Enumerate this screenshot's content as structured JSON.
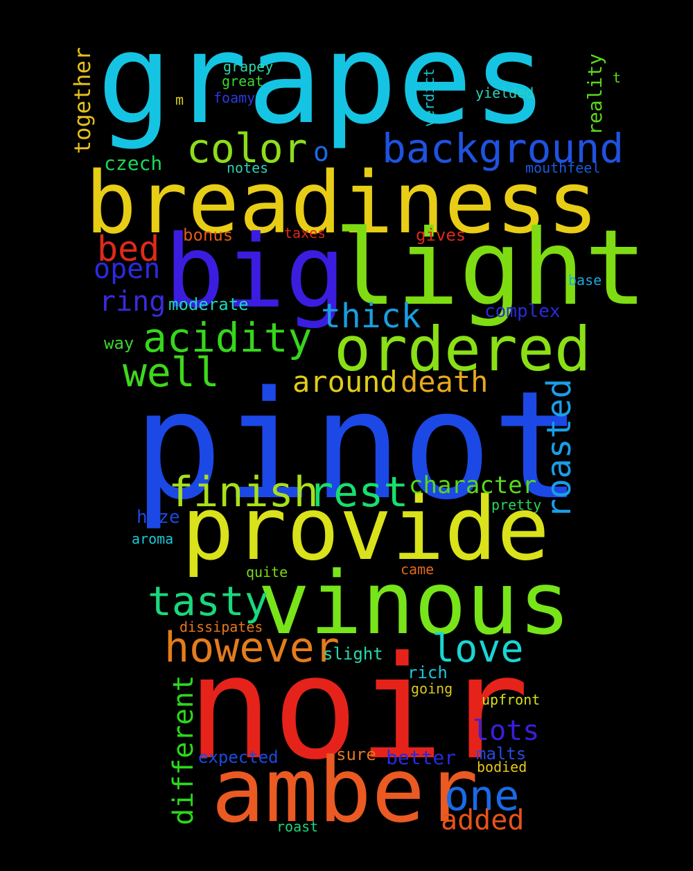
{
  "words": [
    {
      "id": "pinot",
      "text": "pinot",
      "color": "#1c48e6"
    },
    {
      "id": "noir",
      "text": "noir",
      "color": "#e5231b"
    },
    {
      "id": "grapes",
      "text": "grapes",
      "color": "#15c4e2"
    },
    {
      "id": "breadiness",
      "text": "breadiness",
      "color": "#e8cd16"
    },
    {
      "id": "big",
      "text": "big",
      "color": "#3b1de0"
    },
    {
      "id": "light",
      "text": "light",
      "color": "#7fdc12"
    },
    {
      "id": "provide",
      "text": "provide",
      "color": "#d9e21a"
    },
    {
      "id": "vinous",
      "text": "vinous",
      "color": "#78e41a"
    },
    {
      "id": "amber",
      "text": "amber",
      "color": "#ea5a22"
    },
    {
      "id": "ordered",
      "text": "ordered",
      "color": "#8ae015"
    },
    {
      "id": "background",
      "text": "background",
      "color": "#1f52e0"
    },
    {
      "id": "color",
      "text": "color",
      "color": "#8edd1a"
    },
    {
      "id": "acidity",
      "text": "acidity",
      "color": "#36d61c"
    },
    {
      "id": "finish",
      "text": "finish",
      "color": "#a8e01a"
    },
    {
      "id": "rest",
      "text": "rest",
      "color": "#18de6e"
    },
    {
      "id": "tasty",
      "text": "tasty",
      "color": "#1ad87c"
    },
    {
      "id": "however",
      "text": "however",
      "color": "#e47c1c"
    },
    {
      "id": "love",
      "text": "love",
      "color": "#1ad6d2"
    },
    {
      "id": "one",
      "text": "one",
      "color": "#1a6ae8"
    },
    {
      "id": "well",
      "text": "well",
      "color": "#3ed81c"
    },
    {
      "id": "around",
      "text": "around",
      "color": "#e0cc1a"
    },
    {
      "id": "death",
      "text": "death",
      "color": "#e6a81c"
    },
    {
      "id": "thick",
      "text": "thick",
      "color": "#1a9ee2"
    },
    {
      "id": "roasted",
      "text": "roasted",
      "color": "#1a9ee8"
    },
    {
      "id": "bed",
      "text": "bed",
      "color": "#e02a1a"
    },
    {
      "id": "open",
      "text": "open",
      "color": "#2a2ae0"
    },
    {
      "id": "ring",
      "text": "ring",
      "color": "#3a2ae0"
    },
    {
      "id": "lots",
      "text": "lots",
      "color": "#3a1ee0"
    },
    {
      "id": "added",
      "text": "added",
      "color": "#e8521a"
    },
    {
      "id": "different",
      "text": "different",
      "color": "#2ad81a"
    },
    {
      "id": "character",
      "text": "character",
      "color": "#5ad81a"
    },
    {
      "id": "together",
      "text": "together",
      "color": "#e6c21a"
    },
    {
      "id": "reality",
      "text": "reality",
      "color": "#5ad81a"
    },
    {
      "id": "o",
      "text": "o",
      "color": "#1a6ae6"
    },
    {
      "id": "czech",
      "text": "czech",
      "color": "#1ad858"
    },
    {
      "id": "notes",
      "text": "notes",
      "color": "#2ad2b8"
    },
    {
      "id": "grapey",
      "text": "grapey",
      "color": "#2ad8a8"
    },
    {
      "id": "great",
      "text": "great",
      "color": "#3ad82a"
    },
    {
      "id": "foamy",
      "text": "foamy",
      "color": "#2a3ae0"
    },
    {
      "id": "m",
      "text": "m",
      "color": "#d8c81a"
    },
    {
      "id": "verdict",
      "text": "verdict",
      "color": "#1ac8d8"
    },
    {
      "id": "yielded",
      "text": "yielded",
      "color": "#2ad2b8"
    },
    {
      "id": "t",
      "text": "t",
      "color": "#5ad81a"
    },
    {
      "id": "mouthfeel",
      "text": "mouthfeel",
      "color": "#1a5ae0"
    },
    {
      "id": "bonus",
      "text": "bonus",
      "color": "#e0581a"
    },
    {
      "id": "taxes",
      "text": "taxes",
      "color": "#e0281a"
    },
    {
      "id": "gives",
      "text": "gives",
      "color": "#e0281a"
    },
    {
      "id": "base",
      "text": "base",
      "color": "#1aa8e0"
    },
    {
      "id": "moderate",
      "text": "moderate",
      "color": "#1ad8b8"
    },
    {
      "id": "complex",
      "text": "complex",
      "color": "#2a2ae0"
    },
    {
      "id": "way",
      "text": "way",
      "color": "#3ad82a"
    },
    {
      "id": "haze",
      "text": "haze",
      "color": "#1a4ae0"
    },
    {
      "id": "aroma",
      "text": "aroma",
      "color": "#1ac8d8"
    },
    {
      "id": "pretty",
      "text": "pretty",
      "color": "#2ad858"
    },
    {
      "id": "quite",
      "text": "quite",
      "color": "#7ad81a"
    },
    {
      "id": "came",
      "text": "came",
      "color": "#e06a1a"
    },
    {
      "id": "dissipates",
      "text": "dissipates",
      "color": "#e6781a"
    },
    {
      "id": "slight",
      "text": "slight",
      "color": "#2ad8a8"
    },
    {
      "id": "rich",
      "text": "rich",
      "color": "#1ac8d8"
    },
    {
      "id": "going",
      "text": "going",
      "color": "#d8c81a"
    },
    {
      "id": "upfront",
      "text": "upfront",
      "color": "#d8e01a"
    },
    {
      "id": "expected",
      "text": "expected",
      "color": "#1a4ae0"
    },
    {
      "id": "sure",
      "text": "sure",
      "color": "#e6781a"
    },
    {
      "id": "better",
      "text": "better",
      "color": "#2a2ae0"
    },
    {
      "id": "malts",
      "text": "malts",
      "color": "#2a4ae0"
    },
    {
      "id": "bodied",
      "text": "bodied",
      "color": "#e6c81a"
    },
    {
      "id": "roast",
      "text": "roast",
      "color": "#1ad878"
    }
  ]
}
